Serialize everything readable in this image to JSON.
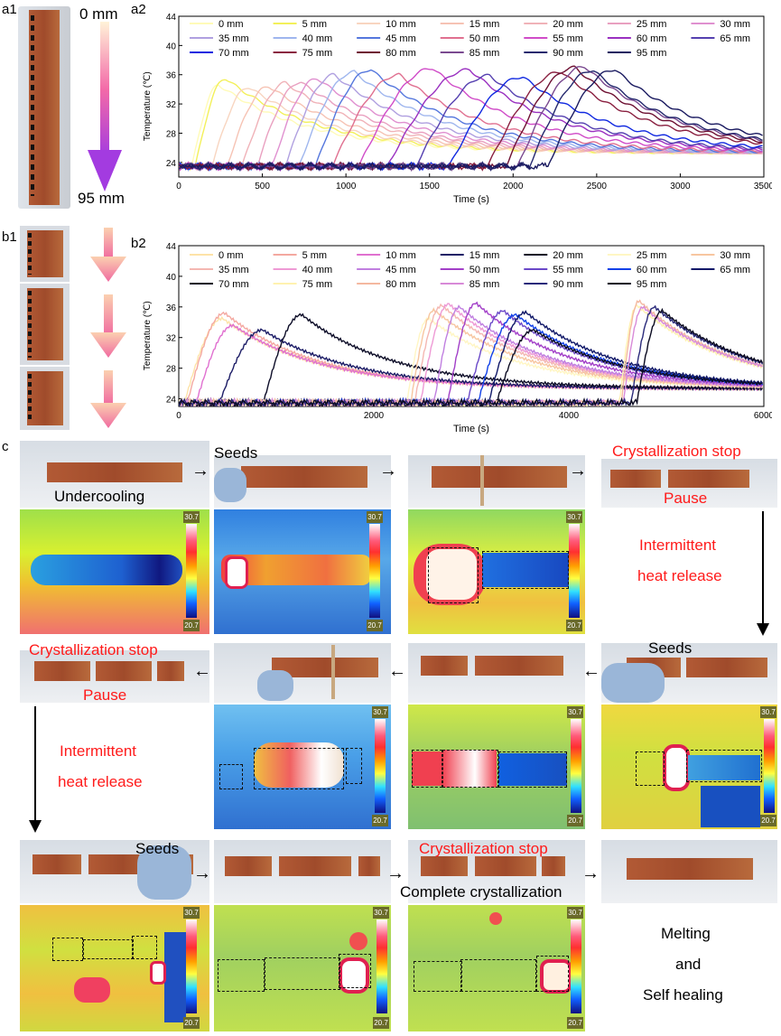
{
  "panels": {
    "a1": "a1",
    "a2": "a2",
    "b1": "b1",
    "b2": "b2",
    "c": "c"
  },
  "side_a": {
    "top": "0 mm",
    "bottom": "95 mm"
  },
  "chart_data": [
    {
      "id": "a2",
      "type": "line",
      "xlabel": "Time (s)",
      "ylabel": "Temperature (℃)",
      "xlim": [
        0,
        3500
      ],
      "ylim": [
        22,
        44
      ],
      "xticks": [
        0,
        500,
        1000,
        1500,
        2000,
        2500,
        3000,
        3500
      ],
      "yticks": [
        24,
        28,
        32,
        36,
        40,
        44
      ],
      "legend_position": "top",
      "series": [
        {
          "name": "0 mm",
          "color": "#fffbb8",
          "onset": 80,
          "peak_t": 240,
          "peak": 34.6
        },
        {
          "name": "5 mm",
          "color": "#f3f05a",
          "onset": 100,
          "peak_t": 280,
          "peak": 35.5
        },
        {
          "name": "10 mm",
          "color": "#f8d5c0",
          "onset": 200,
          "peak_t": 420,
          "peak": 34.3
        },
        {
          "name": "15 mm",
          "color": "#f6c3b4",
          "onset": 290,
          "peak_t": 540,
          "peak": 34.4
        },
        {
          "name": "20 mm",
          "color": "#f0b2b8",
          "onset": 380,
          "peak_t": 640,
          "peak": 34.9
        },
        {
          "name": "25 mm",
          "color": "#e9a0c0",
          "onset": 470,
          "peak_t": 730,
          "peak": 35.0
        },
        {
          "name": "30 mm",
          "color": "#e090d0",
          "onset": 560,
          "peak_t": 830,
          "peak": 35.5
        },
        {
          "name": "35 mm",
          "color": "#b0a0e0",
          "onset": 640,
          "peak_t": 930,
          "peak": 36.0
        },
        {
          "name": "40 mm",
          "color": "#9fb6ee",
          "onset": 720,
          "peak_t": 1050,
          "peak": 36.4
        },
        {
          "name": "45 mm",
          "color": "#5577dd",
          "onset": 820,
          "peak_t": 1150,
          "peak": 36.7
        },
        {
          "name": "50 mm",
          "color": "#e07090",
          "onset": 920,
          "peak_t": 1320,
          "peak": 36.0
        },
        {
          "name": "55 mm",
          "color": "#d04cc8",
          "onset": 1080,
          "peak_t": 1520,
          "peak": 36.9
        },
        {
          "name": "60 mm",
          "color": "#9a30c0",
          "onset": 1250,
          "peak_t": 1740,
          "peak": 36.7
        },
        {
          "name": "65 mm",
          "color": "#5540b0",
          "onset": 1420,
          "peak_t": 1860,
          "peak": 35.9
        },
        {
          "name": "70 mm",
          "color": "#1028e0",
          "onset": 1620,
          "peak_t": 2060,
          "peak": 35.7
        },
        {
          "name": "75 mm",
          "color": "#8a2040",
          "onset": 1850,
          "peak_t": 2290,
          "peak": 36.4
        },
        {
          "name": "80 mm",
          "color": "#6e1032",
          "onset": 1960,
          "peak_t": 2370,
          "peak": 37.0
        },
        {
          "name": "85 mm",
          "color": "#7a4a90",
          "onset": 2030,
          "peak_t": 2430,
          "peak": 37.1
        },
        {
          "name": "90 mm",
          "color": "#25286e",
          "onset": 2100,
          "peak_t": 2480,
          "peak": 36.6
        },
        {
          "name": "95 mm",
          "color": "#1a1a60",
          "onset": 2210,
          "peak_t": 2610,
          "peak": 36.7
        }
      ]
    },
    {
      "id": "b2",
      "type": "line",
      "xlabel": "Time (s)",
      "ylabel": "Temperature (℃)",
      "xlim": [
        0,
        6000
      ],
      "ylim": [
        23,
        44
      ],
      "xticks": [
        0,
        2000,
        4000,
        6000
      ],
      "yticks": [
        24,
        28,
        32,
        36,
        40,
        44
      ],
      "legend_position": "top",
      "series": [
        {
          "name": "0 mm",
          "color": "#fde3a8",
          "onset": 60,
          "peak_t": 450,
          "peak": 34.5
        },
        {
          "name": "5 mm",
          "color": "#f4a8a0",
          "onset": 90,
          "peak_t": 470,
          "peak": 35.2
        },
        {
          "name": "10 mm",
          "color": "#e070d0",
          "onset": 180,
          "peak_t": 560,
          "peak": 33.6
        },
        {
          "name": "15 mm",
          "color": "#1c1c66",
          "onset": 420,
          "peak_t": 860,
          "peak": 33.0
        },
        {
          "name": "20 mm",
          "color": "#0d0d28",
          "onset": 870,
          "peak_t": 1260,
          "peak": 35.0
        },
        {
          "name": "25 mm",
          "color": "#fff6c4",
          "onset": 2340,
          "peak_t": 2560,
          "peak": 34.5
        },
        {
          "name": "30 mm",
          "color": "#f7c6a0",
          "onset": 2380,
          "peak_t": 2620,
          "peak": 35.6
        },
        {
          "name": "35 mm",
          "color": "#f4b7b2",
          "onset": 2420,
          "peak_t": 2700,
          "peak": 36.2
        },
        {
          "name": "40 mm",
          "color": "#ee9ad5",
          "onset": 2480,
          "peak_t": 2770,
          "peak": 36.4
        },
        {
          "name": "45 mm",
          "color": "#c07fe0",
          "onset": 2620,
          "peak_t": 2880,
          "peak": 36.0
        },
        {
          "name": "50 mm",
          "color": "#a23fc8",
          "onset": 2760,
          "peak_t": 3050,
          "peak": 36.5
        },
        {
          "name": "55 mm",
          "color": "#6a48c8",
          "onset": 2960,
          "peak_t": 3330,
          "peak": 35.5
        },
        {
          "name": "60 mm",
          "color": "#1040e8",
          "onset": 3070,
          "peak_t": 3460,
          "peak": 35.0
        },
        {
          "name": "65 mm",
          "color": "#101868",
          "onset": 3180,
          "peak_t": 3560,
          "peak": 35.3
        },
        {
          "name": "70 mm",
          "color": "#0b0b22",
          "onset": 3260,
          "peak_t": 3640,
          "peak": 33.0
        },
        {
          "name": "75 mm",
          "color": "#fff2b0",
          "onset": 4520,
          "peak_t": 4700,
          "peak": 36.2
        },
        {
          "name": "80 mm",
          "color": "#f4b8a0",
          "onset": 4540,
          "peak_t": 4720,
          "peak": 36.8
        },
        {
          "name": "85 mm",
          "color": "#d88ad8",
          "onset": 4560,
          "peak_t": 4760,
          "peak": 36.0
        },
        {
          "name": "90 mm",
          "color": "#2a2a7a",
          "onset": 4640,
          "peak_t": 4880,
          "peak": 36.0
        },
        {
          "name": "95  mm",
          "color": "#0a0a20",
          "onset": 4700,
          "peak_t": 4960,
          "peak": 35.5
        }
      ]
    }
  ],
  "colorbar": {
    "max": "30.7",
    "min": "20.7"
  },
  "captions": {
    "undercooling": "Undercooling",
    "seeds1": "Seeds",
    "stop1": "Crystallization stop",
    "pause1": "Pause",
    "intermittent1a": "Intermittent",
    "intermittent1b": "heat release",
    "seeds2": "Seeds",
    "stop2": "Crystallization stop",
    "pause2": "Pause",
    "intermittent2a": "Intermittent",
    "intermittent2b": "heat release",
    "seeds3": "Seeds",
    "stop3": "Crystallization stop",
    "complete": "Complete crystallization",
    "melting": "Melting",
    "and": "and",
    "selfheal": "Self healing"
  }
}
